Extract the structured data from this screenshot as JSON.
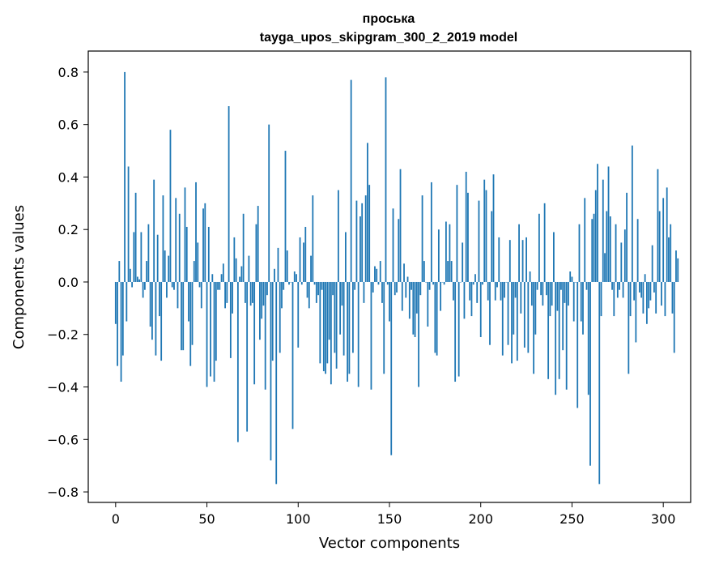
{
  "chart_data": {
    "type": "bar",
    "title": "проська",
    "subtitle": "tayga_upos_skipgram_300_2_2019 model",
    "xlabel": "Vector components",
    "ylabel": "Components values",
    "xlim": [
      -15,
      315
    ],
    "ylim": [
      -0.84,
      0.88
    ],
    "xticks": [
      0,
      50,
      100,
      150,
      200,
      250,
      300
    ],
    "xtick_labels": [
      "0",
      "50",
      "100",
      "150",
      "200",
      "250",
      "300"
    ],
    "yticks": [
      -0.8,
      -0.6,
      -0.4,
      -0.2,
      0.0,
      0.2,
      0.4,
      0.6,
      0.8
    ],
    "ytick_labels": [
      "−0.8",
      "−0.6",
      "−0.4",
      "−0.2",
      "0.0",
      "0.2",
      "0.4",
      "0.6",
      "0.8"
    ],
    "grid": false,
    "legend": "none",
    "bar_color": "#1f77b4",
    "x_start": 0,
    "values": [
      -0.16,
      -0.32,
      0.08,
      -0.38,
      -0.28,
      0.8,
      -0.15,
      0.44,
      0.05,
      -0.02,
      0.19,
      0.34,
      0.02,
      0.01,
      0.19,
      -0.06,
      -0.03,
      0.08,
      0.22,
      -0.17,
      -0.22,
      0.39,
      -0.28,
      0.18,
      -0.13,
      -0.3,
      0.33,
      0.12,
      -0.06,
      0.1,
      0.58,
      -0.02,
      -0.03,
      0.32,
      -0.1,
      0.26,
      -0.26,
      -0.26,
      0.36,
      0.21,
      -0.15,
      -0.32,
      -0.24,
      0.08,
      0.38,
      0.15,
      -0.02,
      -0.1,
      0.28,
      0.3,
      -0.4,
      0.21,
      -0.36,
      0.03,
      -0.38,
      -0.3,
      -0.03,
      -0.03,
      0.03,
      0.07,
      -0.1,
      -0.08,
      0.67,
      -0.29,
      -0.12,
      0.17,
      0.09,
      -0.61,
      0.02,
      0.06,
      0.26,
      -0.08,
      -0.57,
      0.1,
      -0.09,
      -0.08,
      -0.39,
      0.22,
      0.29,
      -0.22,
      -0.14,
      -0.09,
      -0.41,
      -0.05,
      0.6,
      -0.68,
      -0.3,
      0.05,
      -0.77,
      0.13,
      -0.27,
      -0.1,
      -0.03,
      0.5,
      0.12,
      -0.01,
      0.0,
      -0.56,
      0.04,
      0.03,
      -0.25,
      0.17,
      -0.01,
      0.15,
      0.21,
      -0.06,
      -0.1,
      0.1,
      0.33,
      -0.01,
      -0.08,
      -0.05,
      -0.31,
      -0.03,
      -0.34,
      -0.35,
      -0.31,
      -0.22,
      -0.39,
      -0.05,
      -0.27,
      -0.33,
      0.35,
      -0.2,
      -0.09,
      -0.28,
      0.19,
      -0.38,
      -0.35,
      0.77,
      -0.27,
      -0.03,
      0.31,
      -0.4,
      0.25,
      0.3,
      -0.08,
      0.33,
      0.53,
      0.37,
      -0.41,
      -0.04,
      0.06,
      0.05,
      -0.01,
      0.08,
      -0.08,
      -0.35,
      0.78,
      -0.01,
      -0.15,
      -0.66,
      0.28,
      -0.05,
      -0.04,
      0.24,
      0.43,
      -0.11,
      0.07,
      -0.06,
      0.02,
      -0.14,
      -0.03,
      -0.2,
      -0.21,
      -0.12,
      -0.4,
      -0.05,
      0.33,
      0.08,
      0.0,
      -0.17,
      -0.03,
      0.38,
      -0.01,
      -0.27,
      -0.28,
      0.2,
      -0.11,
      0.0,
      -0.01,
      0.23,
      0.08,
      0.22,
      0.08,
      -0.07,
      -0.38,
      0.37,
      -0.36,
      0.0,
      0.15,
      -0.14,
      0.42,
      0.34,
      -0.07,
      -0.13,
      -0.01,
      0.03,
      -0.08,
      0.31,
      -0.21,
      -0.01,
      0.39,
      0.35,
      -0.07,
      -0.24,
      0.27,
      0.41,
      -0.07,
      -0.02,
      0.17,
      -0.07,
      -0.28,
      -0.06,
      0.0,
      -0.24,
      0.16,
      -0.31,
      -0.2,
      -0.06,
      -0.3,
      0.22,
      -0.12,
      0.16,
      -0.25,
      0.17,
      -0.27,
      0.04,
      -0.09,
      -0.35,
      -0.2,
      -0.03,
      0.26,
      -0.05,
      -0.09,
      0.3,
      -0.05,
      -0.37,
      -0.13,
      -0.09,
      0.19,
      -0.43,
      -0.11,
      -0.37,
      -0.03,
      -0.26,
      -0.08,
      -0.41,
      -0.09,
      0.04,
      0.02,
      -0.15,
      0.0,
      -0.48,
      0.22,
      -0.15,
      -0.2,
      0.32,
      -0.03,
      -0.43,
      -0.7,
      0.24,
      0.26,
      0.35,
      0.45,
      -0.77,
      -0.13,
      0.39,
      0.11,
      0.27,
      0.44,
      0.25,
      -0.03,
      -0.13,
      0.22,
      -0.06,
      -0.03,
      0.15,
      -0.06,
      0.2,
      0.34,
      -0.35,
      -0.13,
      0.52,
      -0.07,
      -0.23,
      0.24,
      -0.04,
      -0.06,
      -0.12,
      0.03,
      -0.16,
      -0.1,
      -0.07,
      0.14,
      -0.04,
      -0.12,
      0.43,
      0.27,
      -0.09,
      0.32,
      -0.13,
      0.36,
      0.17,
      0.22,
      -0.12,
      -0.27,
      0.12,
      0.09
    ]
  }
}
